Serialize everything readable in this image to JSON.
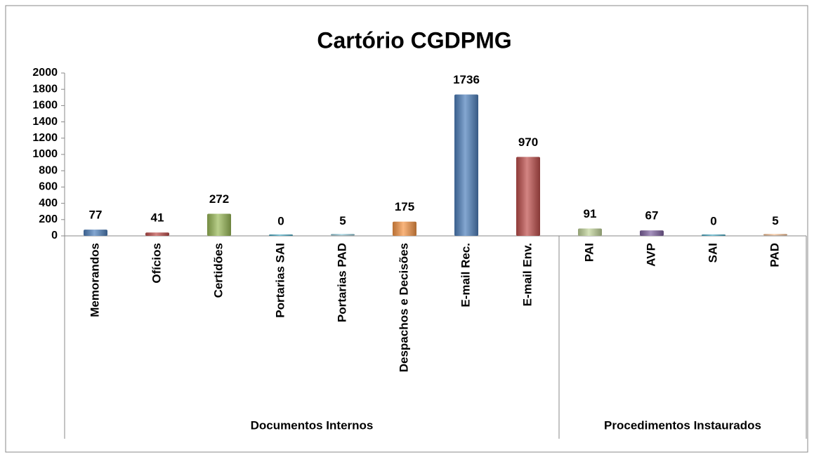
{
  "chart_data": {
    "type": "bar",
    "title": "Cartório CGDPMG",
    "groups": [
      {
        "name": "Documentos Internos",
        "categories": [
          "Memorandos",
          "Ofícios",
          "Certidões",
          "Portarias SAI",
          "Portarias PAD",
          "Despachos e Decisões",
          "E-mail Rec.",
          "E-mail Env."
        ],
        "values": [
          77,
          41,
          272,
          0,
          5,
          175,
          1736,
          970
        ],
        "colors": [
          "#4f81bd",
          "#c0504d",
          "#9bbb59",
          "#4bacc6",
          "#93cddd",
          "#f79646",
          "#4f81bd",
          "#c0504d"
        ]
      },
      {
        "name": "Procedimentos Instaurados",
        "categories": [
          "PAI",
          "AVP",
          "SAI",
          "PAD"
        ],
        "values": [
          91,
          67,
          0,
          5
        ],
        "colors": [
          "#c3d69b",
          "#8064a2",
          "#4bacc6",
          "#fac090"
        ]
      }
    ],
    "ylim": [
      0,
      2000
    ],
    "yticks": [
      0,
      200,
      400,
      600,
      800,
      1000,
      1200,
      1400,
      1600,
      1800,
      2000
    ]
  }
}
